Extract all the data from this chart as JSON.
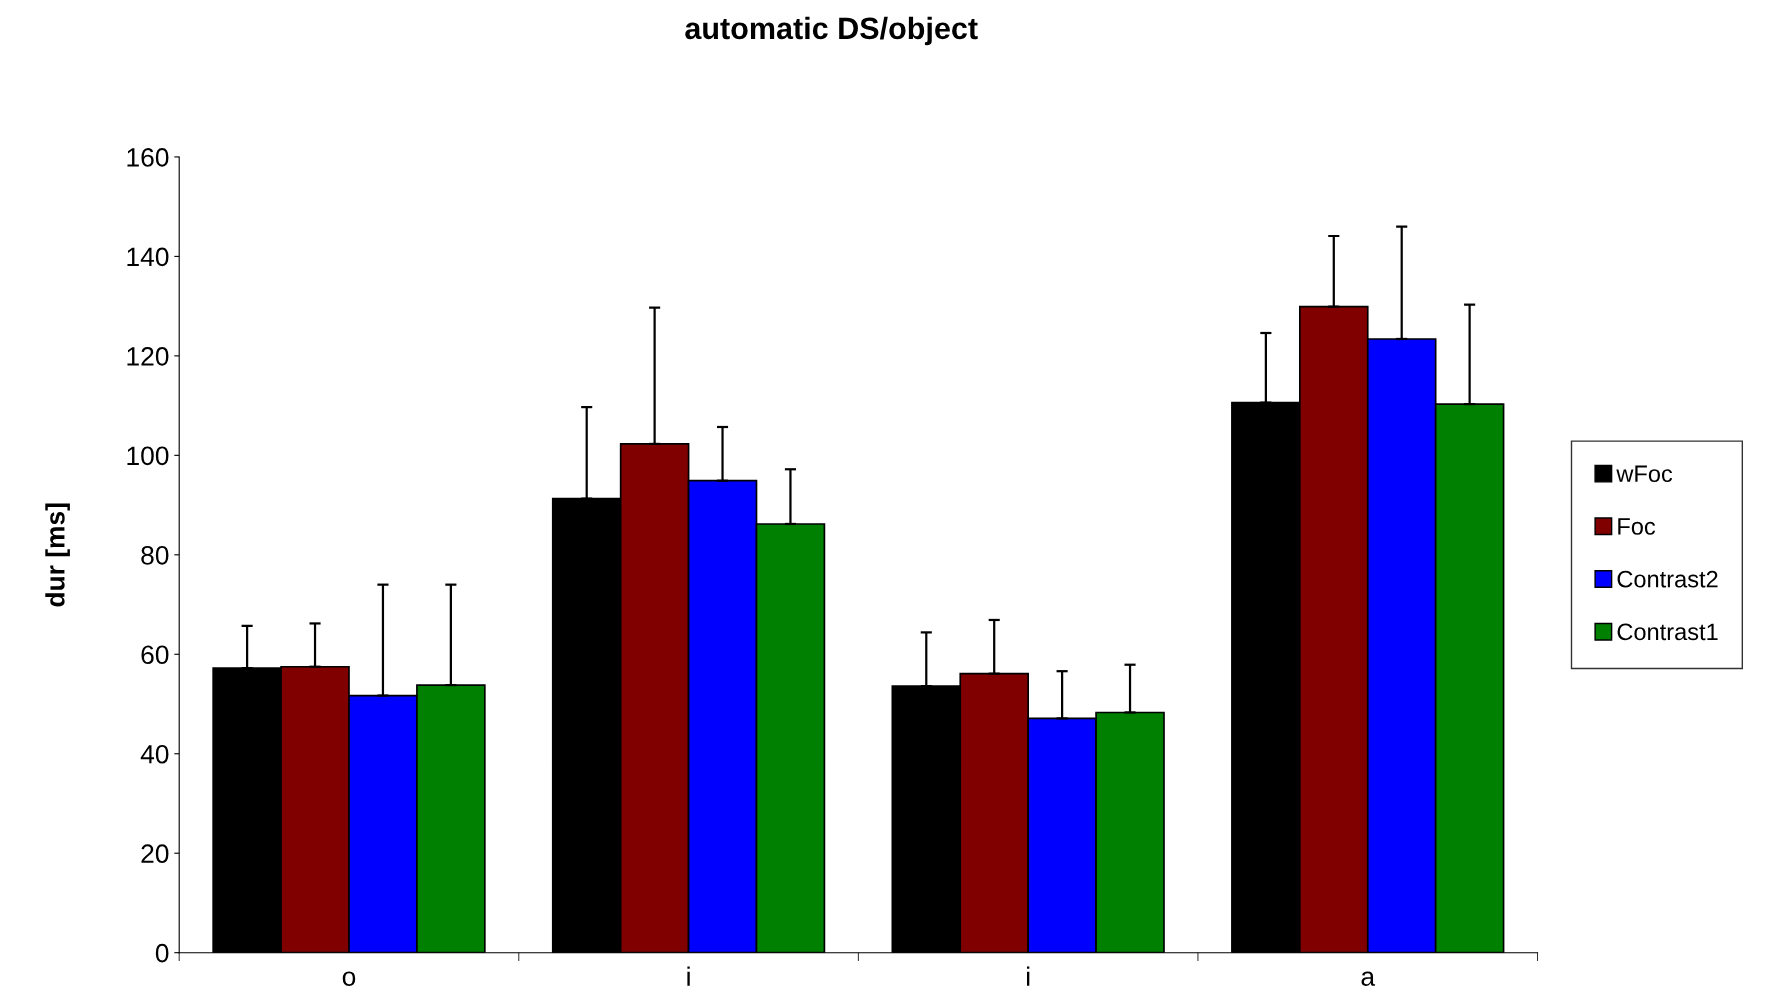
{
  "chart_data": {
    "type": "bar",
    "title": "automatic DS/object",
    "ylabel": "dur [ms]",
    "categories": [
      "o",
      "i",
      "i",
      "a"
    ],
    "ylim": [
      0,
      160
    ],
    "yticks": [
      0,
      20,
      40,
      60,
      80,
      100,
      120,
      140,
      160
    ],
    "grid": false,
    "legend": "right",
    "series": [
      {
        "name": "wFoc",
        "color": "#000000",
        "values": [
          57.2,
          91.3,
          53.6,
          110.6
        ],
        "errors": [
          [
            57.2,
            65.7
          ],
          [
            91.3,
            109.7
          ],
          [
            53.6,
            64.4
          ],
          [
            110.6,
            124.6
          ]
        ]
      },
      {
        "name": "Foc",
        "color": "#800000",
        "values": [
          57.5,
          102.3,
          56.1,
          129.9
        ],
        "errors": [
          [
            57.5,
            66.2
          ],
          [
            102.3,
            129.7
          ],
          [
            56.1,
            66.9
          ],
          [
            129.9,
            144.1
          ]
        ]
      },
      {
        "name": "Contrast2",
        "color": "#0000ff",
        "values": [
          51.7,
          94.9,
          47.1,
          123.4
        ],
        "errors": [
          [
            51.7,
            74.0
          ],
          [
            94.9,
            105.7
          ],
          [
            47.1,
            56.6
          ],
          [
            123.4,
            146.0
          ]
        ]
      },
      {
        "name": "Contrast1",
        "color": "#008000",
        "values": [
          53.8,
          86.2,
          48.3,
          110.3
        ],
        "errors": [
          [
            53.8,
            74.0
          ],
          [
            86.2,
            97.2
          ],
          [
            48.3,
            57.9
          ],
          [
            110.3,
            130.3
          ]
        ]
      }
    ]
  }
}
